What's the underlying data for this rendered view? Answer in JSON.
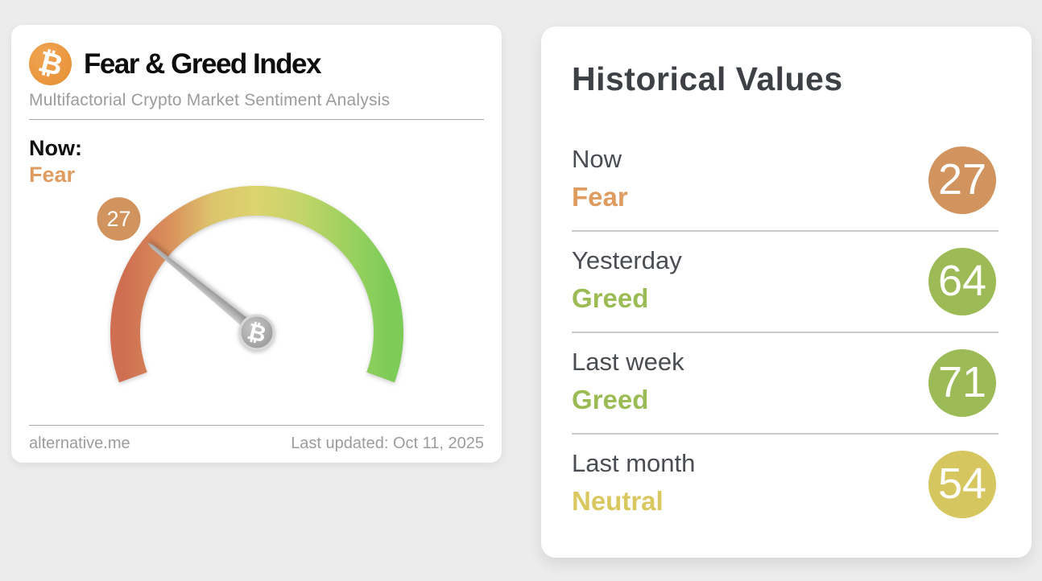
{
  "page": {
    "background_color": "#ececec"
  },
  "fear_greed_card": {
    "bitcoin_symbol": "₿",
    "title": "Fear & Greed Index",
    "subtitle": "Multifactorial Crypto Market Sentiment Analysis",
    "now_label": "Now:",
    "now_classification": "Fear",
    "now_classification_color": "#de9c61",
    "footer": {
      "source": "alternative.me",
      "last_updated": "Last updated: Oct 11, 2025"
    }
  },
  "chart_data": {
    "type": "gauge",
    "title": "Fear & Greed Index",
    "value": 27,
    "value_label": "27",
    "classification": "Fear",
    "min": 0,
    "max": 100,
    "start_angle_deg": 200,
    "sweep_deg": 220,
    "arc_gradient_colors": [
      "#cf6e50",
      "#d98f5c",
      "#dcc46c",
      "#dcd46e",
      "#c3d469",
      "#9ed160",
      "#7dcc58"
    ],
    "value_badge_color": "#d2945e",
    "needle_center_symbol": "₿"
  },
  "historical_card": {
    "title": "Historical Values",
    "rows": [
      {
        "period": "Now",
        "classification": "Fear",
        "value": "27",
        "classification_color": "#de9c61",
        "badge_color": "#d2945e"
      },
      {
        "period": "Yesterday",
        "classification": "Greed",
        "value": "64",
        "classification_color": "#9bbb55",
        "badge_color": "#9cba55"
      },
      {
        "period": "Last week",
        "classification": "Greed",
        "value": "71",
        "classification_color": "#9bbb55",
        "badge_color": "#9cba55"
      },
      {
        "period": "Last month",
        "classification": "Neutral",
        "value": "54",
        "classification_color": "#d9c75f",
        "badge_color": "#d6c660"
      }
    ]
  }
}
